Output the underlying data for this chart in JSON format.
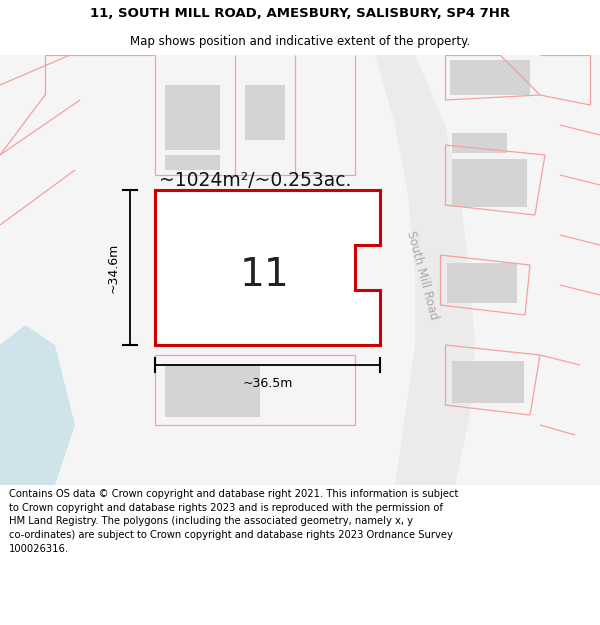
{
  "title_line1": "11, SOUTH MILL ROAD, AMESBURY, SALISBURY, SP4 7HR",
  "title_line2": "Map shows position and indicative extent of the property.",
  "footer_text": "Contains OS data © Crown copyright and database right 2021. This information is subject to Crown copyright and database rights 2023 and is reproduced with the permission of HM Land Registry. The polygons (including the associated geometry, namely x, y co-ordinates) are subject to Crown copyright and database rights 2023 Ordnance Survey 100026316.",
  "area_label": "~1024m²/~0.253ac.",
  "property_number": "11",
  "dim_width": "~36.5m",
  "dim_height": "~34.6m",
  "road_label": "South Mill Road",
  "bg_color": "#ffffff",
  "map_bg": "#f5f5f5",
  "plot_border_color": "#cc0000",
  "building_fill": "#d4d4d4",
  "pink_line_color": "#f5a0a0",
  "water_color": "#c5dfe8",
  "road_fill": "#e8e8e8",
  "title_fontsize": 9.5,
  "footer_fontsize": 7.2
}
